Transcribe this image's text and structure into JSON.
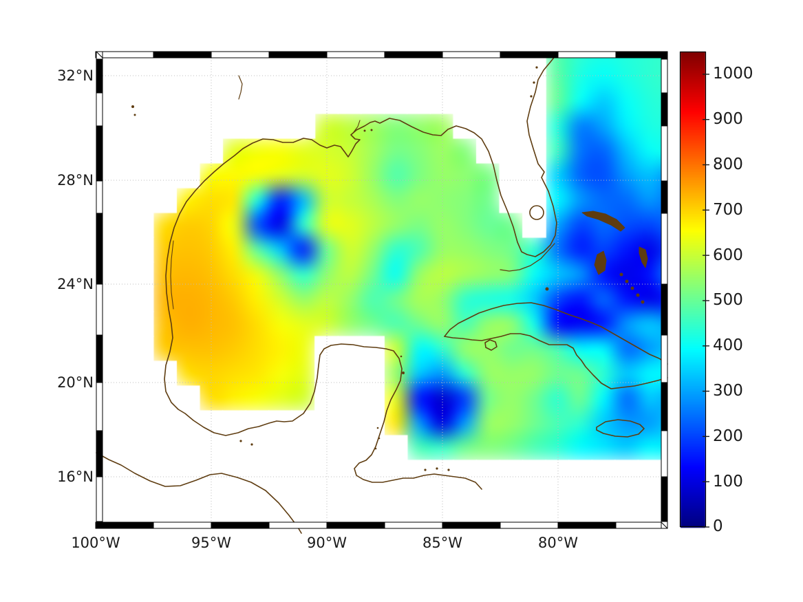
{
  "figure": {
    "background": "#ffffff",
    "description_region": "Gulf of Mexico / Caribbean heatmap with jet colorbar"
  },
  "axes": {
    "xticks": [
      {
        "label": "100°W"
      },
      {
        "label": "95°W"
      },
      {
        "label": "90°W"
      },
      {
        "label": "85°W"
      },
      {
        "label": "80°W"
      }
    ],
    "yticks": [
      {
        "label": "32°N"
      },
      {
        "label": "28°N"
      },
      {
        "label": "24°N"
      },
      {
        "label": "20°N"
      },
      {
        "label": "16°N"
      }
    ]
  },
  "colorbar": {
    "colormap": "jet",
    "vmin": 0,
    "vmax": 1050,
    "ticks": [
      {
        "label": "1000",
        "value": 1000
      },
      {
        "label": "900",
        "value": 900
      },
      {
        "label": "800",
        "value": 800
      },
      {
        "label": "700",
        "value": 700
      },
      {
        "label": "600",
        "value": 600
      },
      {
        "label": "500",
        "value": 500
      },
      {
        "label": "400",
        "value": 400
      },
      {
        "label": "300",
        "value": 300
      },
      {
        "label": "200",
        "value": 200
      },
      {
        "label": "100",
        "value": 100
      },
      {
        "label": "0",
        "value": 0
      }
    ]
  },
  "style": {
    "coast_color": "#5e3c10",
    "grid_color": "#bdbdbd",
    "frame_color": "#000000",
    "nodata_color": "#ffffff"
  },
  "chart_data": {
    "type": "heatmap",
    "colormap": "jet",
    "colorbar_range": [
      0,
      1050
    ],
    "lon_ticks": [
      "100°W",
      "95°W",
      "90°W",
      "85°W",
      "80°W"
    ],
    "lat_ticks": [
      "32°N",
      "28°N",
      "24°N",
      "20°N",
      "16°N"
    ],
    "x_lon": [
      -100,
      -99,
      -98,
      -97,
      -96,
      -95,
      -94,
      -93,
      -92,
      -91,
      -90,
      -89,
      -88,
      -87,
      -86,
      -85,
      -84,
      -83,
      -82,
      -81,
      -80,
      -79,
      -78,
      -77,
      -76,
      -75
    ],
    "y_lat": [
      33,
      32,
      31,
      30,
      29,
      28,
      27,
      26,
      25,
      24,
      23,
      22,
      21,
      20,
      19,
      18,
      17,
      16,
      15,
      14
    ],
    "values": [
      [
        null,
        null,
        null,
        null,
        null,
        null,
        null,
        null,
        null,
        null,
        null,
        null,
        null,
        null,
        null,
        null,
        null,
        null,
        null,
        null,
        480,
        440,
        420,
        430,
        440,
        450
      ],
      [
        null,
        null,
        null,
        null,
        null,
        null,
        null,
        null,
        null,
        null,
        null,
        null,
        null,
        null,
        null,
        null,
        null,
        null,
        null,
        null,
        490,
        420,
        400,
        420,
        440,
        450
      ],
      [
        null,
        null,
        null,
        null,
        null,
        null,
        null,
        null,
        null,
        null,
        null,
        null,
        null,
        null,
        null,
        null,
        null,
        null,
        null,
        null,
        500,
        400,
        340,
        400,
        430,
        440
      ],
      [
        null,
        null,
        null,
        null,
        null,
        null,
        null,
        null,
        null,
        null,
        610,
        590,
        560,
        530,
        545,
        560,
        null,
        null,
        null,
        null,
        430,
        260,
        300,
        380,
        420,
        430
      ],
      [
        null,
        null,
        null,
        null,
        null,
        null,
        630,
        645,
        650,
        630,
        615,
        600,
        560,
        515,
        530,
        555,
        530,
        null,
        null,
        null,
        460,
        250,
        230,
        330,
        400,
        415
      ],
      [
        null,
        null,
        null,
        null,
        null,
        650,
        660,
        650,
        630,
        615,
        630,
        610,
        550,
        475,
        520,
        550,
        540,
        520,
        null,
        null,
        350,
        230,
        210,
        290,
        330,
        270
      ],
      [
        null,
        null,
        null,
        null,
        670,
        690,
        680,
        420,
        160,
        320,
        600,
        600,
        570,
        530,
        550,
        540,
        530,
        510,
        null,
        null,
        390,
        290,
        240,
        240,
        290,
        240
      ],
      [
        null,
        null,
        null,
        690,
        710,
        700,
        640,
        210,
        110,
        440,
        630,
        630,
        590,
        550,
        520,
        550,
        530,
        500,
        510,
        null,
        300,
        200,
        240,
        210,
        200,
        240
      ],
      [
        null,
        null,
        null,
        710,
        720,
        710,
        670,
        490,
        340,
        160,
        500,
        610,
        550,
        440,
        470,
        550,
        550,
        530,
        510,
        440,
        250,
        160,
        200,
        150,
        110,
        200
      ],
      [
        null,
        null,
        null,
        720,
        730,
        720,
        690,
        640,
        540,
        440,
        540,
        590,
        510,
        400,
        550,
        590,
        570,
        550,
        530,
        400,
        340,
        290,
        150,
        110,
        150,
        290
      ],
      [
        null,
        null,
        null,
        730,
        740,
        730,
        710,
        670,
        610,
        550,
        590,
        550,
        470,
        510,
        570,
        550,
        440,
        420,
        410,
        340,
        200,
        150,
        240,
        150,
        110,
        150
      ],
      [
        null,
        null,
        null,
        720,
        740,
        730,
        720,
        690,
        650,
        630,
        610,
        550,
        510,
        470,
        510,
        550,
        470,
        550,
        550,
        410,
        140,
        120,
        150,
        290,
        340,
        290
      ],
      [
        null,
        null,
        null,
        710,
        720,
        720,
        710,
        690,
        670,
        640,
        null,
        null,
        null,
        610,
        390,
        440,
        550,
        550,
        510,
        510,
        470,
        390,
        390,
        240,
        290,
        340
      ],
      [
        null,
        null,
        null,
        null,
        690,
        700,
        690,
        680,
        650,
        630,
        null,
        null,
        null,
        550,
        340,
        290,
        440,
        550,
        550,
        550,
        510,
        510,
        440,
        340,
        390,
        390
      ],
      [
        null,
        null,
        null,
        null,
        null,
        690,
        670,
        650,
        630,
        610,
        null,
        null,
        null,
        630,
        150,
        80,
        190,
        510,
        550,
        510,
        440,
        510,
        390,
        240,
        340,
        290
      ],
      [
        null,
        null,
        null,
        null,
        null,
        null,
        null,
        null,
        null,
        null,
        null,
        null,
        null,
        680,
        290,
        100,
        290,
        550,
        550,
        510,
        470,
        440,
        340,
        290,
        290,
        340
      ],
      [
        null,
        null,
        null,
        null,
        null,
        null,
        null,
        null,
        null,
        null,
        null,
        null,
        null,
        null,
        470,
        450,
        510,
        530,
        510,
        470,
        440,
        390,
        370,
        340,
        390,
        370
      ],
      [
        null,
        null,
        null,
        null,
        null,
        null,
        null,
        null,
        null,
        null,
        null,
        null,
        null,
        null,
        null,
        null,
        null,
        null,
        null,
        null,
        null,
        null,
        null,
        null,
        null,
        null
      ],
      [
        null,
        null,
        null,
        null,
        null,
        null,
        null,
        null,
        null,
        null,
        null,
        null,
        null,
        null,
        null,
        null,
        null,
        null,
        null,
        null,
        null,
        null,
        null,
        null,
        null,
        null
      ],
      [
        null,
        null,
        null,
        null,
        null,
        null,
        null,
        null,
        null,
        null,
        null,
        null,
        null,
        null,
        null,
        null,
        null,
        null,
        null,
        null,
        null,
        null,
        null,
        null,
        null,
        null
      ]
    ]
  }
}
